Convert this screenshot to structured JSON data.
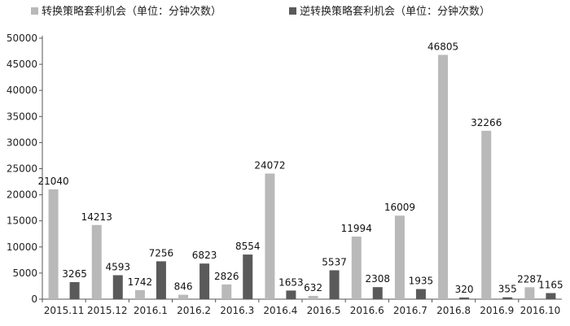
{
  "chart_data": {
    "type": "bar",
    "categories": [
      "2015.11",
      "2015.12",
      "2016.1",
      "2016.2",
      "2016.3",
      "2016.4",
      "2016.5",
      "2016.6",
      "2016.7",
      "2016.8",
      "2016.9",
      "2016.10"
    ],
    "series": [
      {
        "name": "转换策略套利机会（单位：分钟次数）",
        "color": "#b9b9b9",
        "values": [
          21040,
          14213,
          1742,
          846,
          2826,
          24072,
          632,
          11994,
          16009,
          46805,
          32266,
          2287
        ]
      },
      {
        "name": "逆转换策略套利机会（单位：分钟次数）",
        "color": "#5a5a5a",
        "values": [
          3265,
          4593,
          7256,
          6823,
          8554,
          1653,
          5537,
          2308,
          1935,
          320,
          355,
          1165
        ]
      }
    ],
    "ylim": [
      0,
      50000
    ],
    "yticks": [
      0,
      5000,
      10000,
      15000,
      20000,
      25000,
      30000,
      35000,
      40000,
      45000,
      50000
    ],
    "grid": false,
    "legend": "top"
  }
}
